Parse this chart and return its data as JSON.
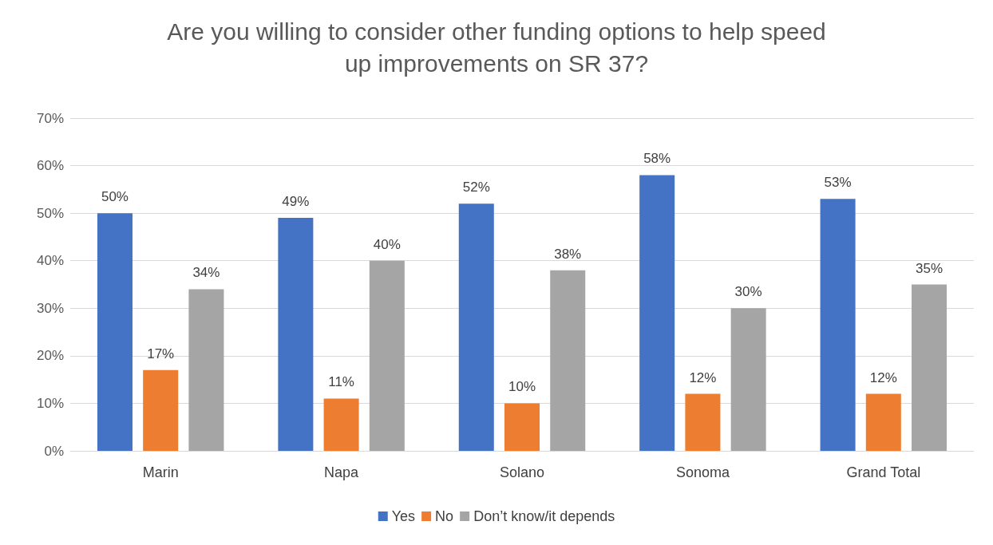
{
  "chart_data": {
    "type": "bar",
    "title": "Are you willing to consider other funding options to help speed\nup improvements on SR 37?",
    "categories": [
      "Marin",
      "Napa",
      "Solano",
      "Sonoma",
      "Grand Total"
    ],
    "series": [
      {
        "name": "Yes",
        "color": "#4472c4",
        "values": [
          50,
          49,
          52,
          58,
          53
        ],
        "value_labels": [
          "50%",
          "49%",
          "52%",
          "58%",
          "53%"
        ]
      },
      {
        "name": "No",
        "color": "#ed7d31",
        "values": [
          17,
          11,
          10,
          12,
          12
        ],
        "value_labels": [
          "17%",
          "11%",
          "10%",
          "12%",
          "12%"
        ]
      },
      {
        "name": "Don’t know/it depends",
        "color": "#a5a5a5",
        "values": [
          34,
          40,
          38,
          30,
          35
        ],
        "value_labels": [
          "34%",
          "40%",
          "38%",
          "30%",
          "35%"
        ]
      }
    ],
    "ylim": [
      0,
      70
    ],
    "yticks": [
      {
        "value": 0,
        "label": "0%"
      },
      {
        "value": 10,
        "label": "10%"
      },
      {
        "value": 20,
        "label": "20%"
      },
      {
        "value": 30,
        "label": "30%"
      },
      {
        "value": 40,
        "label": "40%"
      },
      {
        "value": 50,
        "label": "50%"
      },
      {
        "value": 60,
        "label": "60%"
      },
      {
        "value": 70,
        "label": "70%"
      }
    ],
    "grid": "y",
    "legend": "bottom"
  }
}
